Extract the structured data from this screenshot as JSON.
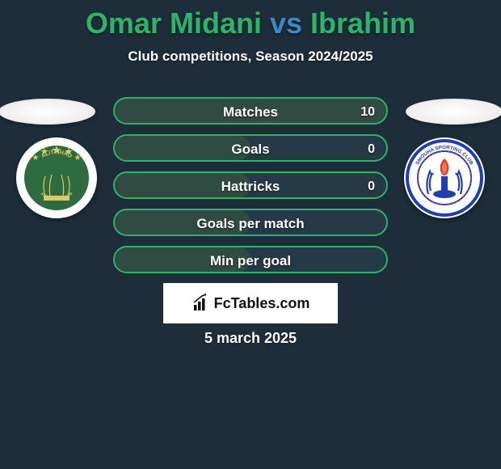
{
  "title": {
    "player1": "Omar Midani",
    "vs": "vs",
    "player2": "Ibrahim",
    "color1": "#2fb36a",
    "color_vs": "#3b87c8",
    "color2": "#2fb36a",
    "fontsize": 36
  },
  "subtitle": "Club competitions, Season 2024/2025",
  "colors": {
    "background": "#1d2d39",
    "row_border": "#2fb36a",
    "row_bg": "#263946",
    "row_fill": "#2f4b42",
    "text": "#ffffff"
  },
  "stats": [
    {
      "label": "Matches",
      "value": "10",
      "fill_pct": 100
    },
    {
      "label": "Goals",
      "value": "0",
      "fill_pct": 50
    },
    {
      "label": "Hattricks",
      "value": "0",
      "fill_pct": 50
    },
    {
      "label": "Goals per match",
      "value": "",
      "fill_pct": 50
    },
    {
      "label": "Min per goal",
      "value": "",
      "fill_pct": 50
    }
  ],
  "club_left": {
    "bg": "#ffffff",
    "inner_bg": "#2e6b3e",
    "ring": "#d8c96a",
    "text_top": "ALITTIHAD",
    "text_bottom": "ALEXANDRIA CLUB"
  },
  "club_right": {
    "bg": "#ffffff",
    "ring_outer": "#1f3fae",
    "ring_text": "SMOUHA SPORTING CLUB",
    "flame": "#e03a3a",
    "wreath": "#1f3fae"
  },
  "brand": "FcTables.com",
  "date": "5 march 2025"
}
